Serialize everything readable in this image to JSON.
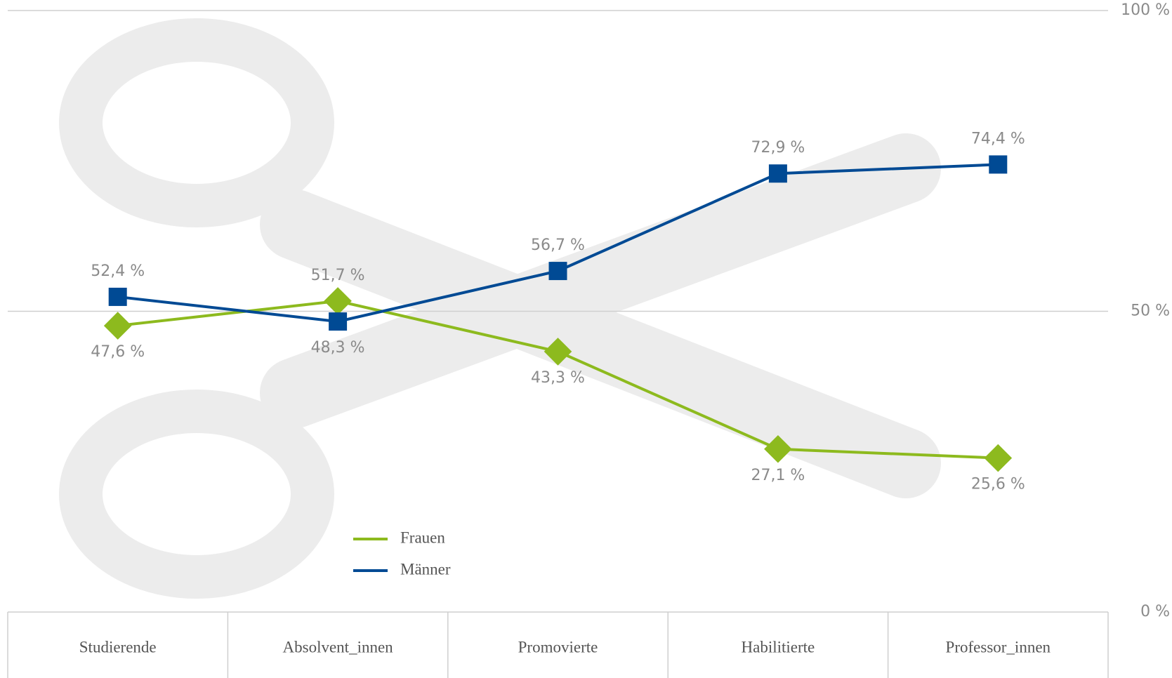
{
  "chart_data": {
    "type": "line",
    "categories": [
      "Studierende",
      "Absolvent_innen",
      "Promovierte",
      "Habilitierte",
      "Professor_innen"
    ],
    "series": [
      {
        "name": "Frauen",
        "color": "#8dba1e",
        "values": [
          47.6,
          51.7,
          43.3,
          27.1,
          25.6
        ],
        "value_labels": [
          "47,6 %",
          "51,7 %",
          "43,3 %",
          "27,1 %",
          "25,6 %"
        ]
      },
      {
        "name": "Männer",
        "color": "#004a94",
        "values": [
          52.4,
          48.3,
          56.7,
          72.9,
          74.4
        ],
        "value_labels": [
          "52,4 %",
          "48,3 %",
          "56,7 %",
          "72,9 %",
          "74,4 %"
        ]
      }
    ],
    "ylim": [
      0,
      100
    ],
    "yticks": [
      {
        "value": 0,
        "label": "0 %"
      },
      {
        "value": 50,
        "label": "50 %"
      },
      {
        "value": 100,
        "label": "100 %"
      }
    ],
    "grid": true
  }
}
